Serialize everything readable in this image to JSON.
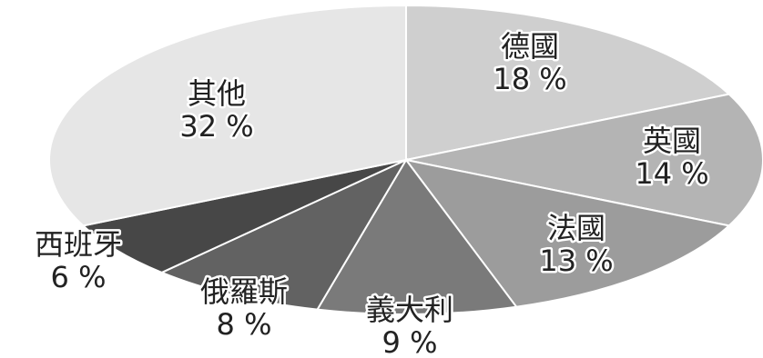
{
  "chart_data": {
    "type": "pie",
    "start_angle_deg": 0,
    "direction": "clockwise",
    "slices": [
      {
        "label": "德國",
        "value": 18,
        "value_label": "18 %",
        "color": "#cfcfcf"
      },
      {
        "label": "英國",
        "value": 14,
        "value_label": "14 %",
        "color": "#b4b4b4"
      },
      {
        "label": "法國",
        "value": 13,
        "value_label": "13 %",
        "color": "#9c9c9c"
      },
      {
        "label": "義大利",
        "value": 9,
        "value_label": "9 %",
        "color": "#7a7a7a"
      },
      {
        "label": "俄羅斯",
        "value": 8,
        "value_label": "8 %",
        "color": "#626262"
      },
      {
        "label": "西班牙",
        "value": 6,
        "value_label": "6 %",
        "color": "#474747"
      },
      {
        "label": "其他",
        "value": 32,
        "value_label": "32 %",
        "color": "#e6e6e6"
      }
    ]
  }
}
